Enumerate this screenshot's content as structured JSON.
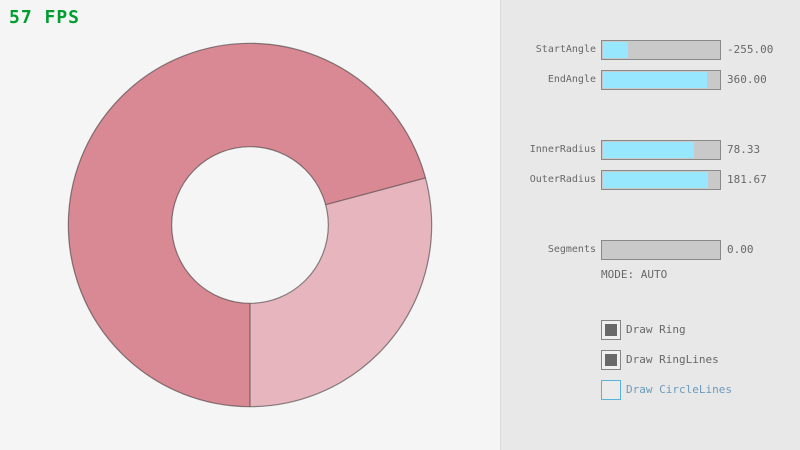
{
  "fps": {
    "text": "57 FPS",
    "color": "#009e30"
  },
  "ring": {
    "description": "donut ring drawn with two alpha passes",
    "overlap_color": "#d98994",
    "single_pass_color": "#e6b5bd",
    "outline_color": "rgba(45,45,45,0.55)",
    "background_color": "#f5f5f5"
  },
  "panel": {
    "background": "#e8e8e8",
    "accent_fill": "#97e8ff",
    "track_color": "#c9c9c9",
    "border_color": "#898989",
    "text_color": "#686868",
    "focused_border_color": "#5bb2d9",
    "focused_text_color": "#6c9bbc",
    "sliders": [
      {
        "label": "StartAngle",
        "value": "-255.00",
        "fill_pct": 21.67
      },
      {
        "label": "EndAngle",
        "value": "360.00",
        "fill_pct": 90.0
      },
      {
        "label": "InnerRadius",
        "value": "78.33",
        "fill_pct": 78.33
      },
      {
        "label": "OuterRadius",
        "value": "181.67",
        "fill_pct": 90.83
      },
      {
        "label": "Segments",
        "value": "0.00",
        "fill_pct": 0
      }
    ],
    "mode_text": "MODE: AUTO",
    "checkboxes": [
      {
        "label": "Draw Ring",
        "checked": true,
        "focused": false
      },
      {
        "label": "Draw RingLines",
        "checked": true,
        "focused": false
      },
      {
        "label": "Draw CircleLines",
        "checked": false,
        "focused": true
      }
    ]
  }
}
